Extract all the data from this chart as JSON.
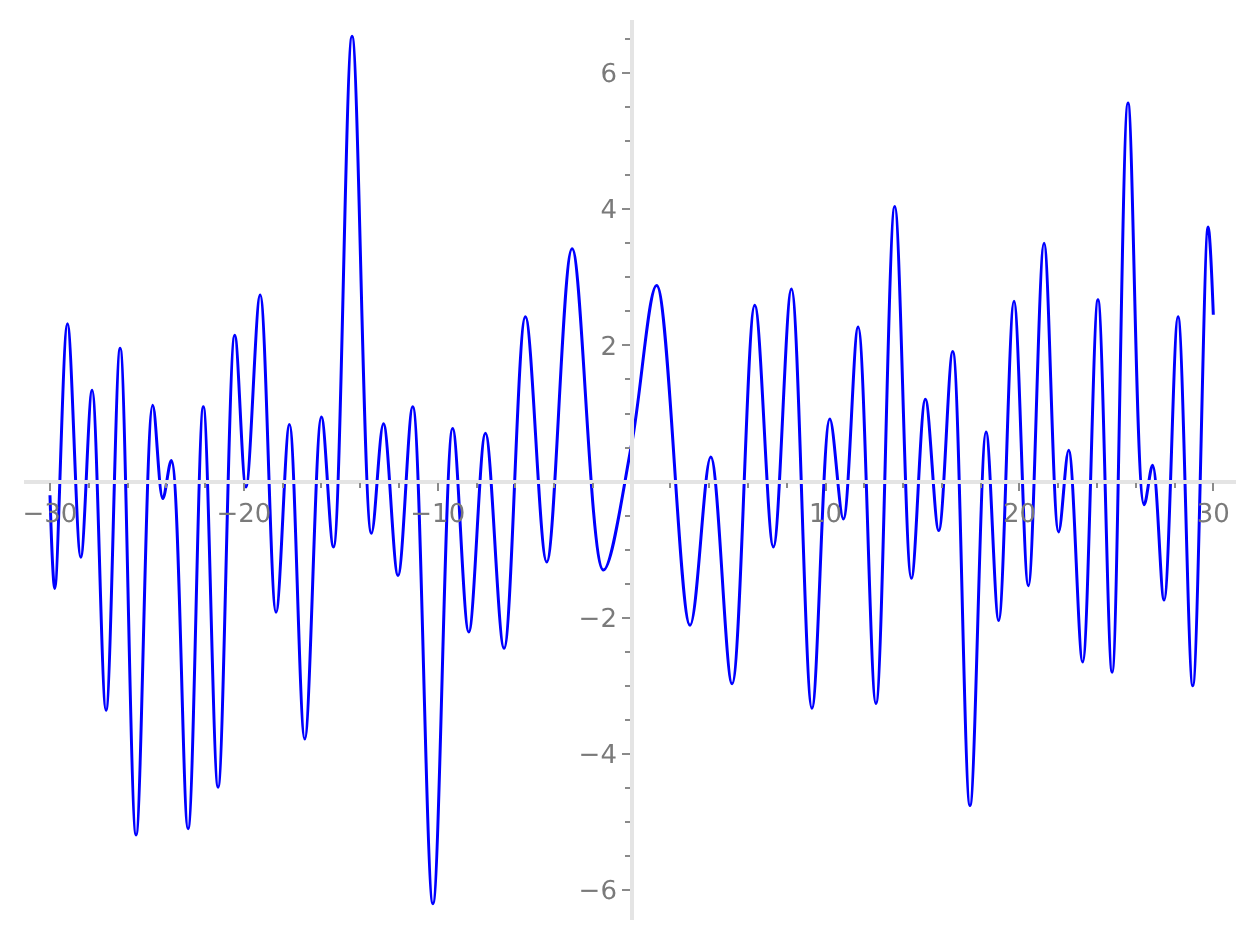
{
  "chart_data": {
    "type": "line",
    "color": "#0000ff",
    "x": [
      -30.0,
      -29.75,
      -29.1,
      -28.41,
      -27.83,
      -27.11,
      -26.38,
      -25.56,
      -24.7,
      -24.18,
      -23.74,
      -22.88,
      -22.09,
      -21.33,
      -20.47,
      -19.89,
      -19.16,
      -18.34,
      -17.65,
      -16.86,
      -16.0,
      -15.38,
      -14.42,
      -13.42,
      -12.8,
      -12.05,
      -11.29,
      -10.25,
      -9.23,
      -8.4,
      -7.54,
      -6.58,
      -5.48,
      -4.38,
      -3.07,
      -1.46,
      0,
      1.29,
      3.01,
      4.08,
      5.18,
      6.35,
      7.31,
      8.24,
      9.3,
      10.22,
      10.92,
      11.68,
      12.6,
      13.57,
      14.43,
      15.15,
      15.84,
      16.56,
      17.45,
      18.28,
      18.93,
      19.72,
      20.46,
      21.27,
      22.02,
      22.54,
      23.26,
      24.05,
      24.78,
      25.6,
      26.43,
      26.87,
      27.46,
      28.18,
      28.94,
      29.73,
      30.0
    ],
    "values": [
      -0.2,
      -1.57,
      2.32,
      -1.11,
      1.34,
      -3.36,
      1.96,
      -5.19,
      1.12,
      -0.25,
      0.31,
      -5.1,
      1.1,
      -4.49,
      2.15,
      -0.08,
      2.74,
      -1.92,
      0.84,
      -3.78,
      0.95,
      -0.96,
      6.54,
      -0.76,
      0.85,
      -1.38,
      1.1,
      -6.2,
      0.78,
      -2.21,
      0.71,
      -2.45,
      2.42,
      -1.18,
      3.42,
      -1.3,
      0.55,
      2.88,
      -2.11,
      0.36,
      -2.97,
      2.59,
      -0.96,
      2.83,
      -3.33,
      0.92,
      -0.55,
      2.27,
      -3.26,
      4.04,
      -1.42,
      1.21,
      -0.72,
      1.91,
      -4.76,
      0.73,
      -2.04,
      2.65,
      -1.53,
      3.5,
      -0.74,
      0.46,
      -2.65,
      2.67,
      -2.8,
      5.56,
      -0.34,
      0.24,
      -1.74,
      2.42,
      -3.0,
      3.74,
      2.45
    ],
    "xlim": [
      -31.34,
      31.17
    ],
    "ylim": [
      -6.44,
      6.78
    ],
    "xticks": [
      -30,
      {
        "value": -28,
        "label": null
      },
      {
        "value": -26,
        "label": null
      },
      {
        "value": -24,
        "label": null
      },
      {
        "value": -22,
        "label": null
      },
      -20,
      {
        "value": -18,
        "label": null
      },
      {
        "value": -16,
        "label": null
      },
      {
        "value": -14,
        "label": null
      },
      {
        "value": -12,
        "label": null
      },
      -10,
      {
        "value": -8,
        "label": null
      },
      {
        "value": -6,
        "label": null
      },
      {
        "value": -4,
        "label": null
      },
      {
        "value": -2,
        "label": null
      },
      {
        "value": 2,
        "label": null
      },
      {
        "value": 4,
        "label": null
      },
      {
        "value": 6,
        "label": null
      },
      {
        "value": 8,
        "label": null
      },
      10,
      {
        "value": 12,
        "label": null
      },
      {
        "value": 14,
        "label": null
      },
      {
        "value": 16,
        "label": null
      },
      {
        "value": 18,
        "label": null
      },
      20,
      {
        "value": 22,
        "label": null
      },
      {
        "value": 24,
        "label": null
      },
      {
        "value": 26,
        "label": null
      },
      {
        "value": 28,
        "label": null
      },
      30
    ],
    "yticks": [
      -6,
      {
        "value": -5.5,
        "label": null
      },
      {
        "value": -5,
        "label": null
      },
      {
        "value": -4.5,
        "label": null
      },
      -4,
      {
        "value": -3.5,
        "label": null
      },
      {
        "value": -3,
        "label": null
      },
      {
        "value": -2.5,
        "label": null
      },
      -2,
      {
        "value": -1.5,
        "label": null
      },
      {
        "value": -1,
        "label": null
      },
      {
        "value": -0.5,
        "label": null
      },
      {
        "value": 0.5,
        "label": null
      },
      {
        "value": 1,
        "label": null
      },
      {
        "value": 1.5,
        "label": null
      },
      2,
      {
        "value": 2.5,
        "label": null
      },
      {
        "value": 3,
        "label": null
      },
      {
        "value": 3.5,
        "label": null
      },
      4,
      {
        "value": 4.5,
        "label": null
      },
      {
        "value": 5,
        "label": null
      },
      {
        "value": 5.5,
        "label": null
      },
      6,
      {
        "value": 6.5,
        "label": null
      }
    ]
  }
}
